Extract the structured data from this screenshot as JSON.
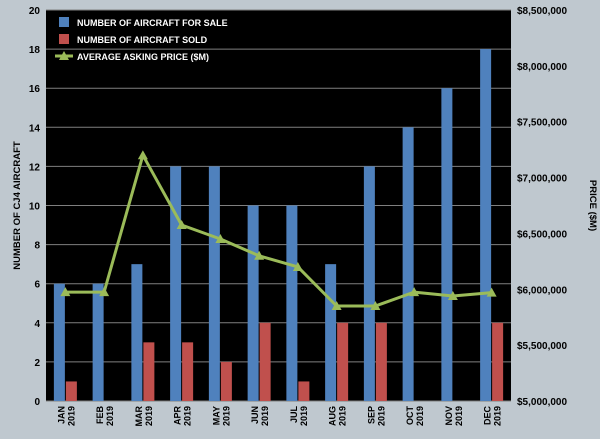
{
  "chart_data": {
    "type": "bar",
    "categories": [
      [
        "JAN",
        "2019"
      ],
      [
        "FEB",
        "2019"
      ],
      [
        "MAR",
        "2019"
      ],
      [
        "APR",
        "2019"
      ],
      [
        "MAY",
        "2019"
      ],
      [
        "JUN",
        "2019"
      ],
      [
        "JUL",
        "2019"
      ],
      [
        "AUG",
        "2019"
      ],
      [
        "SEP",
        "2019"
      ],
      [
        "OCT",
        "2019"
      ],
      [
        "NOV",
        "2019"
      ],
      [
        "DEC",
        "2019"
      ]
    ],
    "series": [
      {
        "name": "NUMBER OF AIRCRAFT FOR SALE",
        "type": "bar",
        "axis": "left",
        "color": "#4f81bd",
        "values": [
          6,
          6,
          7,
          12,
          12,
          10,
          10,
          7,
          12,
          14,
          16,
          18
        ]
      },
      {
        "name": "NUMBER OF AIRCRAFT SOLD",
        "type": "bar",
        "axis": "left",
        "color": "#c0504d",
        "values": [
          1,
          0,
          3,
          3,
          2,
          4,
          1,
          4,
          4,
          0,
          0,
          4
        ]
      },
      {
        "name": "AVERAGE ASKING PRICE ($M)",
        "type": "line",
        "axis": "right",
        "color": "#9bbb59",
        "marker": "triangle",
        "values": [
          5975000,
          5975000,
          7200000,
          6575000,
          6450000,
          6300000,
          6200000,
          5850000,
          5850000,
          5975000,
          5940000,
          5970000
        ]
      }
    ],
    "y_left": {
      "label": "NUMBER OF CJ4 AIRCRAFT",
      "min": 0,
      "max": 20,
      "step": 2,
      "ticks": [
        "0",
        "2",
        "4",
        "6",
        "8",
        "10",
        "12",
        "14",
        "16",
        "18",
        "20"
      ]
    },
    "y_right": {
      "label": "PRICE ($M)",
      "min": 5000000,
      "max": 8500000,
      "step": 500000,
      "ticks": [
        "$5,000,000",
        "$5,500,000",
        "$6,000,000",
        "$6,500,000",
        "$7,000,000",
        "$7,500,000",
        "$8,000,000",
        "$8,500,000"
      ]
    },
    "grid": true,
    "legend_position": "top-left",
    "plot_background": "#000000",
    "gridline_color": "#7f7f7f"
  }
}
